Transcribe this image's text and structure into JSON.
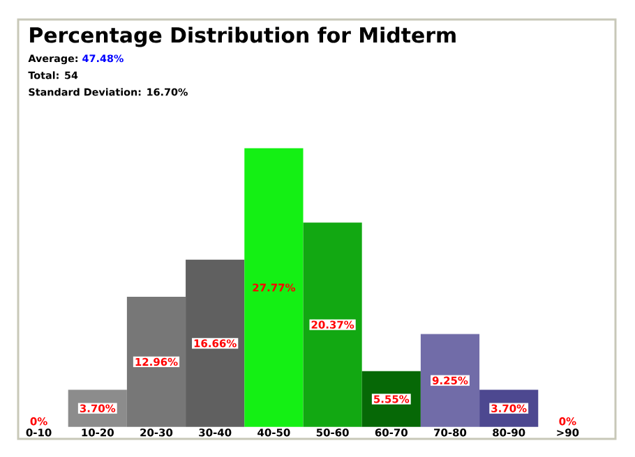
{
  "chart_data": {
    "type": "bar",
    "title": "Percentage Distribution for Midterm",
    "annotations": [
      "Average:",
      "47.48%",
      "Total: 54",
      "Standard Deviation: 16.70%"
    ],
    "categories": [
      "0-10",
      "10-20",
      "20-30",
      "30-40",
      "40-50",
      "50-60",
      "60-70",
      "70-80",
      "80-90",
      ">90"
    ],
    "values": [
      0,
      3.7,
      12.96,
      16.66,
      27.77,
      20.37,
      5.55,
      9.25,
      3.7,
      0
    ],
    "colors": [
      "#808080",
      "#8c8c8c",
      "#777777",
      "#606060",
      "#14f014",
      "#12a812",
      "#066806",
      "#716ca8",
      "#4d4890",
      "#808080"
    ],
    "value_labels": [
      "0%",
      "3.70%",
      "12.96%",
      "16.66%",
      "27.77%",
      "20.37%",
      "5.55%",
      "9.25%",
      "3.70%",
      "0%"
    ]
  }
}
